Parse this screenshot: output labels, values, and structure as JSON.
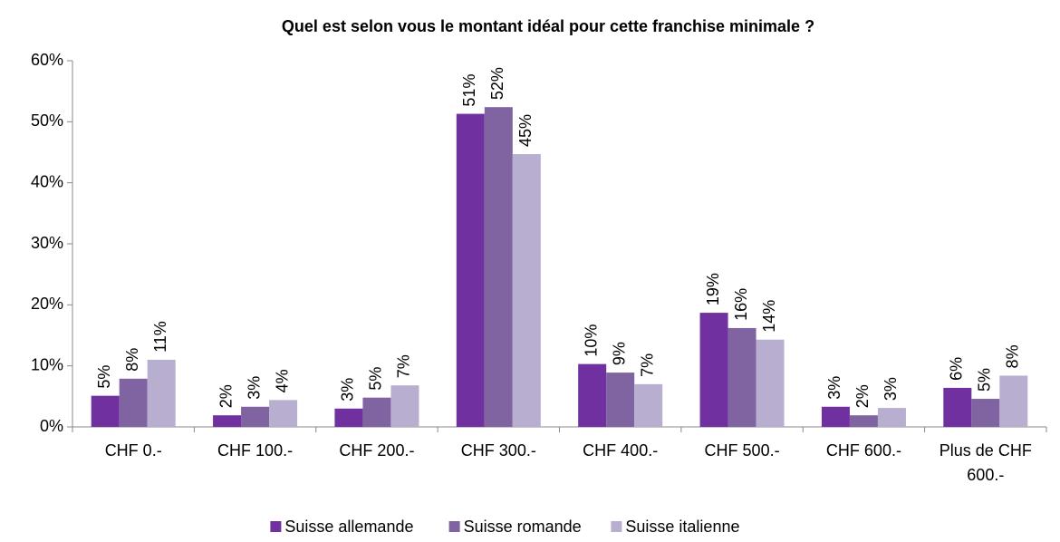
{
  "chart_data": {
    "type": "bar",
    "title": "Quel est selon vous le montant idéal pour cette franchise minimale ?",
    "categories": [
      "CHF 0.-",
      "CHF 100.-",
      "CHF 200.-",
      "CHF 300.-",
      "CHF 400.-",
      "CHF 500.-",
      "CHF 600.-",
      "Plus de CHF 600.-"
    ],
    "series": [
      {
        "name": "Suisse allemande",
        "color": "#7030a0",
        "values": [
          5.1,
          1.9,
          3.0,
          51.3,
          10.3,
          18.7,
          3.3,
          6.4
        ],
        "value_labels": [
          "5%",
          "2%",
          "3%",
          "51%",
          "10%",
          "19%",
          "3%",
          "6%"
        ]
      },
      {
        "name": "Suisse romande",
        "color": "#8064a2",
        "values": [
          7.9,
          3.3,
          4.8,
          52.4,
          8.9,
          16.2,
          1.9,
          4.6
        ],
        "value_labels": [
          "8%",
          "3%",
          "5%",
          "52%",
          "9%",
          "16%",
          "2%",
          "5%"
        ]
      },
      {
        "name": "Suisse italienne",
        "color": "#b8aed0",
        "values": [
          11.0,
          4.4,
          6.8,
          44.7,
          7.0,
          14.3,
          3.1,
          8.4
        ],
        "value_labels": [
          "11%",
          "4%",
          "7%",
          "45%",
          "7%",
          "14%",
          "3%",
          "8%"
        ]
      }
    ],
    "ylim": [
      0,
      60
    ],
    "yticks": [
      {
        "value": 0,
        "label": "0%"
      },
      {
        "value": 10,
        "label": "10%"
      },
      {
        "value": 20,
        "label": "20%"
      },
      {
        "value": 30,
        "label": "30%"
      },
      {
        "value": 40,
        "label": "40%"
      },
      {
        "value": 50,
        "label": "50%"
      },
      {
        "value": 60,
        "label": "60%"
      }
    ],
    "grid": false,
    "legend": "bottom"
  }
}
